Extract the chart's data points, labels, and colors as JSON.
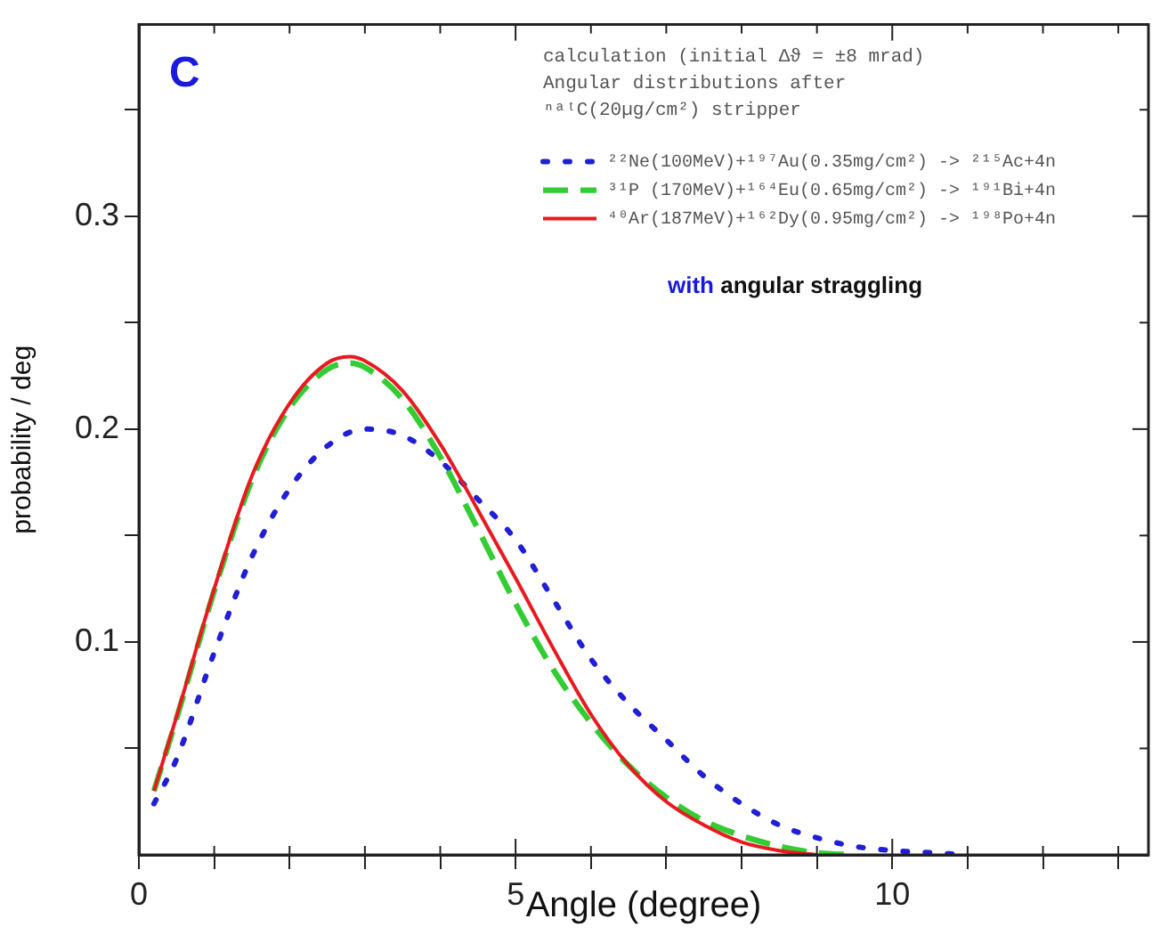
{
  "chart_data": {
    "type": "line",
    "xlabel": "Angle (degree)",
    "ylabel": "probability / deg",
    "xlim": [
      0,
      13.4
    ],
    "ylim": [
      0,
      0.39
    ],
    "xticks": [
      0,
      {
        "value": 1,
        "label": null
      },
      {
        "value": 2,
        "label": null
      },
      {
        "value": 3,
        "label": null
      },
      {
        "value": 4,
        "label": null
      },
      5,
      {
        "value": 6,
        "label": null
      },
      {
        "value": 7,
        "label": null
      },
      {
        "value": 8,
        "label": null
      },
      {
        "value": 9,
        "label": null
      },
      10,
      {
        "value": 11,
        "label": null
      },
      {
        "value": 12,
        "label": null
      },
      {
        "value": 13,
        "label": null
      }
    ],
    "yticks": [
      {
        "value": 0.05,
        "label": null
      },
      0.1,
      {
        "value": 0.15,
        "label": null
      },
      0.2,
      {
        "value": 0.25,
        "label": null
      },
      0.3,
      {
        "value": 0.35,
        "label": null
      }
    ],
    "grid": false,
    "legend": "top right",
    "marker": "none",
    "annotations": [
      "C",
      "calculation (initial Δϑ = ±8 mrad)",
      "Angular distributions after",
      "ⁿᵃᵗC(20µg/cm²) stripper",
      "with angular straggling"
    ],
    "series": [
      {
        "name": "²²Ne(100MeV)+¹⁹⁷Au(0.35mg/cm²) -> ²¹⁵Ac+4n",
        "color": "#1f1fd6",
        "line_style": "dotted",
        "x": [
          0.2,
          0.5,
          1,
          1.5,
          2,
          2.5,
          3,
          3.5,
          4,
          4.5,
          5,
          5.5,
          6,
          6.5,
          7,
          7.5,
          8,
          8.5,
          9,
          9.5,
          10,
          10.5,
          11
        ],
        "values": [
          0.024,
          0.045,
          0.095,
          0.14,
          0.172,
          0.192,
          0.2,
          0.197,
          0.185,
          0.167,
          0.148,
          0.12,
          0.092,
          0.071,
          0.054,
          0.037,
          0.024,
          0.014,
          0.008,
          0.004,
          0.002,
          0.001,
          0
        ]
      },
      {
        "name": "³¹P (170MeV)+¹⁶⁴Eu(0.65mg/cm²) -> ¹⁹¹Bi+4n",
        "color": "#33cc33",
        "line_style": "dashed",
        "x": [
          0.2,
          0.5,
          1,
          1.5,
          2,
          2.5,
          2.8,
          3,
          3.5,
          4,
          4.5,
          5,
          5.5,
          6,
          6.5,
          7,
          7.5,
          8,
          8.5,
          9,
          9.5
        ],
        "values": [
          0.03,
          0.064,
          0.124,
          0.176,
          0.21,
          0.228,
          0.231,
          0.229,
          0.214,
          0.187,
          0.153,
          0.118,
          0.087,
          0.062,
          0.042,
          0.027,
          0.016,
          0.009,
          0.004,
          0.001,
          0
        ]
      },
      {
        "name": "⁴⁰Ar(187MeV)+¹⁶²Dy(0.95mg/cm²) -> ¹⁹⁸Po+4n",
        "color": "#e8191f",
        "line_style": "solid",
        "x": [
          0.2,
          0.5,
          1,
          1.5,
          2,
          2.5,
          2.8,
          3,
          3.5,
          4,
          4.5,
          5,
          5.5,
          6,
          6.5,
          7,
          7.5,
          8,
          8.5,
          9
        ],
        "values": [
          0.03,
          0.065,
          0.125,
          0.178,
          0.212,
          0.231,
          0.234,
          0.232,
          0.218,
          0.193,
          0.162,
          0.13,
          0.097,
          0.066,
          0.042,
          0.025,
          0.014,
          0.006,
          0.002,
          0
        ]
      }
    ]
  }
}
